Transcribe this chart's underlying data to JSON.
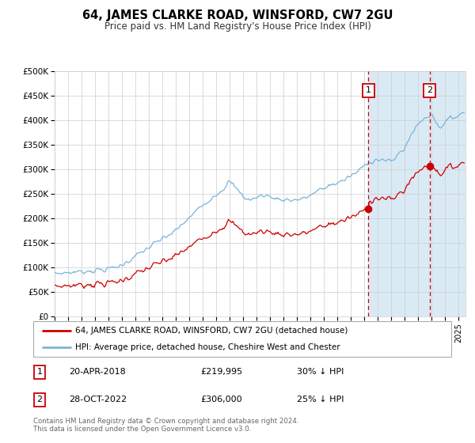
{
  "title": "64, JAMES CLARKE ROAD, WINSFORD, CW7 2GU",
  "subtitle": "Price paid vs. HM Land Registry's House Price Index (HPI)",
  "ylim": [
    0,
    500000
  ],
  "yticks": [
    0,
    50000,
    100000,
    150000,
    200000,
    250000,
    300000,
    350000,
    400000,
    450000,
    500000
  ],
  "ytick_labels": [
    "£0",
    "£50K",
    "£100K",
    "£150K",
    "£200K",
    "£250K",
    "£300K",
    "£350K",
    "£400K",
    "£450K",
    "£500K"
  ],
  "hpi_color": "#7ab4d8",
  "price_color": "#cc0000",
  "marker_color": "#cc0000",
  "vline_color": "#cc0000",
  "shade_color": "#daeaf5",
  "grid_color": "#cccccc",
  "background_color": "#ffffff",
  "sale1_year": 2018.29,
  "sale1_price": 219995,
  "sale2_year": 2022.83,
  "sale2_price": 306000,
  "legend_line1": "64, JAMES CLARKE ROAD, WINSFORD, CW7 2GU (detached house)",
  "legend_line2": "HPI: Average price, detached house, Cheshire West and Chester",
  "table_row1_num": "1",
  "table_row1_date": "20-APR-2018",
  "table_row1_price": "£219,995",
  "table_row1_hpi": "30% ↓ HPI",
  "table_row2_num": "2",
  "table_row2_date": "28-OCT-2022",
  "table_row2_price": "£306,000",
  "table_row2_hpi": "25% ↓ HPI",
  "footnote": "Contains HM Land Registry data © Crown copyright and database right 2024.\nThis data is licensed under the Open Government Licence v3.0.",
  "xmin": 1995.0,
  "xmax": 2025.5
}
